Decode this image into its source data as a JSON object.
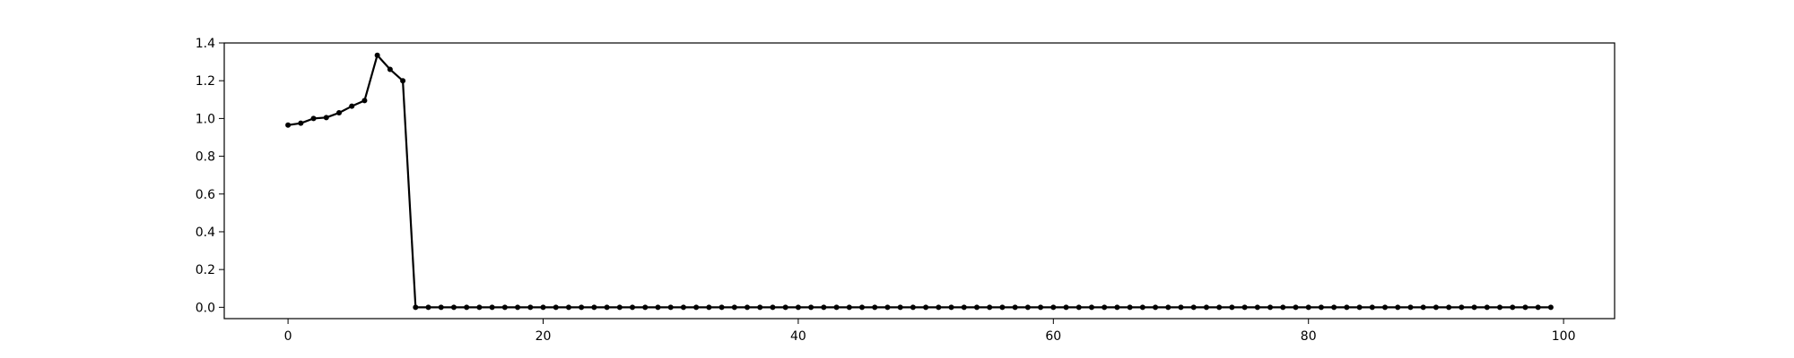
{
  "colors": {
    "series": "#000000",
    "axis": "#000000",
    "background": "#ffffff"
  },
  "chart_data": {
    "type": "line",
    "title": "",
    "xlabel": "",
    "ylabel": "",
    "xlim": [
      -5,
      104
    ],
    "ylim": [
      -0.06,
      1.4
    ],
    "xticks": [
      0,
      20,
      40,
      60,
      80,
      100
    ],
    "yticks": [
      0.0,
      0.2,
      0.4,
      0.6,
      0.8,
      1.0,
      1.2,
      1.4
    ],
    "xtick_labels": [
      "0",
      "20",
      "40",
      "60",
      "80",
      "100"
    ],
    "ytick_labels": [
      "0.0",
      "0.2",
      "0.4",
      "0.6",
      "0.8",
      "1.0",
      "1.2",
      "1.4"
    ],
    "grid": false,
    "marker": "dot",
    "series": [
      {
        "x": [
          0,
          1,
          2,
          3,
          4,
          5,
          6,
          7,
          8,
          9,
          10,
          11,
          12,
          13,
          14,
          15,
          16,
          17,
          18,
          19,
          20,
          21,
          22,
          23,
          24,
          25,
          26,
          27,
          28,
          29,
          30,
          31,
          32,
          33,
          34,
          35,
          36,
          37,
          38,
          39,
          40,
          41,
          42,
          43,
          44,
          45,
          46,
          47,
          48,
          49,
          50,
          51,
          52,
          53,
          54,
          55,
          56,
          57,
          58,
          59,
          60,
          61,
          62,
          63,
          64,
          65,
          66,
          67,
          68,
          69,
          70,
          71,
          72,
          73,
          74,
          75,
          76,
          77,
          78,
          79,
          80,
          81,
          82,
          83,
          84,
          85,
          86,
          87,
          88,
          89,
          90,
          91,
          92,
          93,
          94,
          95,
          96,
          97,
          98,
          99
        ],
        "y": [
          0.965,
          0.975,
          1.0,
          1.005,
          1.03,
          1.065,
          1.095,
          1.335,
          1.26,
          1.2,
          0,
          0,
          0,
          0,
          0,
          0,
          0,
          0,
          0,
          0,
          0,
          0,
          0,
          0,
          0,
          0,
          0,
          0,
          0,
          0,
          0,
          0,
          0,
          0,
          0,
          0,
          0,
          0,
          0,
          0,
          0,
          0,
          0,
          0,
          0,
          0,
          0,
          0,
          0,
          0,
          0,
          0,
          0,
          0,
          0,
          0,
          0,
          0,
          0,
          0,
          0,
          0,
          0,
          0,
          0,
          0,
          0,
          0,
          0,
          0,
          0,
          0,
          0,
          0,
          0,
          0,
          0,
          0,
          0,
          0,
          0,
          0,
          0,
          0,
          0,
          0,
          0,
          0,
          0,
          0,
          0,
          0,
          0,
          0,
          0,
          0,
          0,
          0,
          0,
          0
        ]
      }
    ]
  }
}
